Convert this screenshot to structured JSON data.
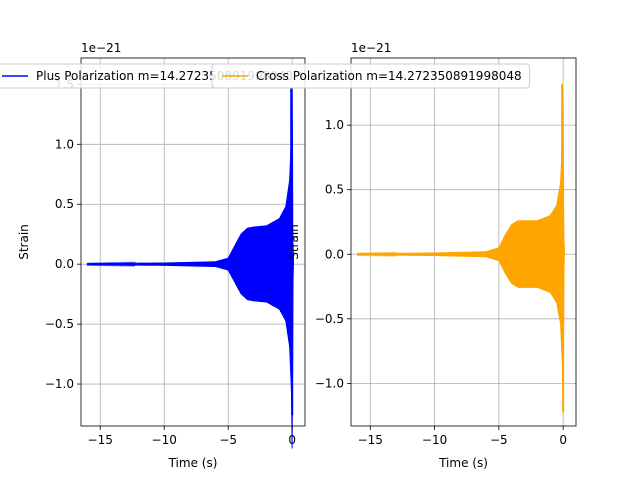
{
  "chart_data": [
    {
      "type": "line",
      "x_label": "Time (s)",
      "y_label": "Strain",
      "y_offset_label": "1e−21",
      "xlim": [
        -16.5,
        1.0
      ],
      "ylim": [
        -1.35,
        1.72
      ],
      "x_ticks": [
        -15,
        -10,
        -5,
        0
      ],
      "x_tick_labels": [
        "−15",
        "−10",
        "−5",
        "0"
      ],
      "y_ticks": [
        -1.0,
        -0.5,
        0.0,
        0.5,
        1.0,
        1.5
      ],
      "y_tick_labels": [
        "−1.0",
        "−0.5",
        "0.0",
        "0.5",
        "1.0",
        "1.5"
      ],
      "grid": true,
      "legend_position": "top-center",
      "series": [
        {
          "name": "Plus Polarization m=14.272350891998048",
          "color": "#0000ff",
          "envelope": [
            [
              -16.0,
              0.005
            ],
            [
              -10.0,
              0.01
            ],
            [
              -6.0,
              0.02
            ],
            [
              -5.0,
              0.05
            ],
            [
              -4.5,
              0.15
            ],
            [
              -4.0,
              0.25
            ],
            [
              -3.5,
              0.3
            ],
            [
              -3.0,
              0.31
            ],
            [
              -2.0,
              0.32
            ],
            [
              -1.0,
              0.38
            ],
            [
              -0.5,
              0.48
            ],
            [
              -0.2,
              0.7
            ],
            [
              -0.05,
              1.1
            ],
            [
              0.0,
              1.65
            ],
            [
              0.05,
              0.2
            ],
            [
              0.1,
              0.0
            ]
          ],
          "min_value": -1.26
        }
      ]
    },
    {
      "type": "line",
      "x_label": "Time (s)",
      "y_label": "Strain",
      "y_offset_label": "1e−21",
      "xlim": [
        -16.5,
        1.0
      ],
      "ylim": [
        -1.33,
        1.52
      ],
      "x_ticks": [
        -15,
        -10,
        -5,
        0
      ],
      "x_tick_labels": [
        "−15",
        "−10",
        "−5",
        "0"
      ],
      "y_ticks": [
        -1.0,
        -0.5,
        0.0,
        0.5,
        1.0
      ],
      "y_tick_labels": [
        "−1.0",
        "−0.5",
        "0.0",
        "0.5",
        "1.0"
      ],
      "grid": true,
      "legend_position": "top-center",
      "series": [
        {
          "name": "Cross Polarization m=14.272350891998048",
          "color": "#ffa500",
          "envelope": [
            [
              -16.0,
              0.005
            ],
            [
              -10.0,
              0.01
            ],
            [
              -6.0,
              0.02
            ],
            [
              -5.0,
              0.05
            ],
            [
              -4.5,
              0.15
            ],
            [
              -4.0,
              0.23
            ],
            [
              -3.5,
              0.26
            ],
            [
              -3.0,
              0.26
            ],
            [
              -2.0,
              0.26
            ],
            [
              -1.0,
              0.3
            ],
            [
              -0.5,
              0.38
            ],
            [
              -0.2,
              0.55
            ],
            [
              -0.05,
              0.9
            ],
            [
              0.0,
              1.32
            ],
            [
              0.05,
              0.15
            ],
            [
              0.1,
              0.0
            ]
          ],
          "min_value": -1.22
        }
      ]
    }
  ]
}
